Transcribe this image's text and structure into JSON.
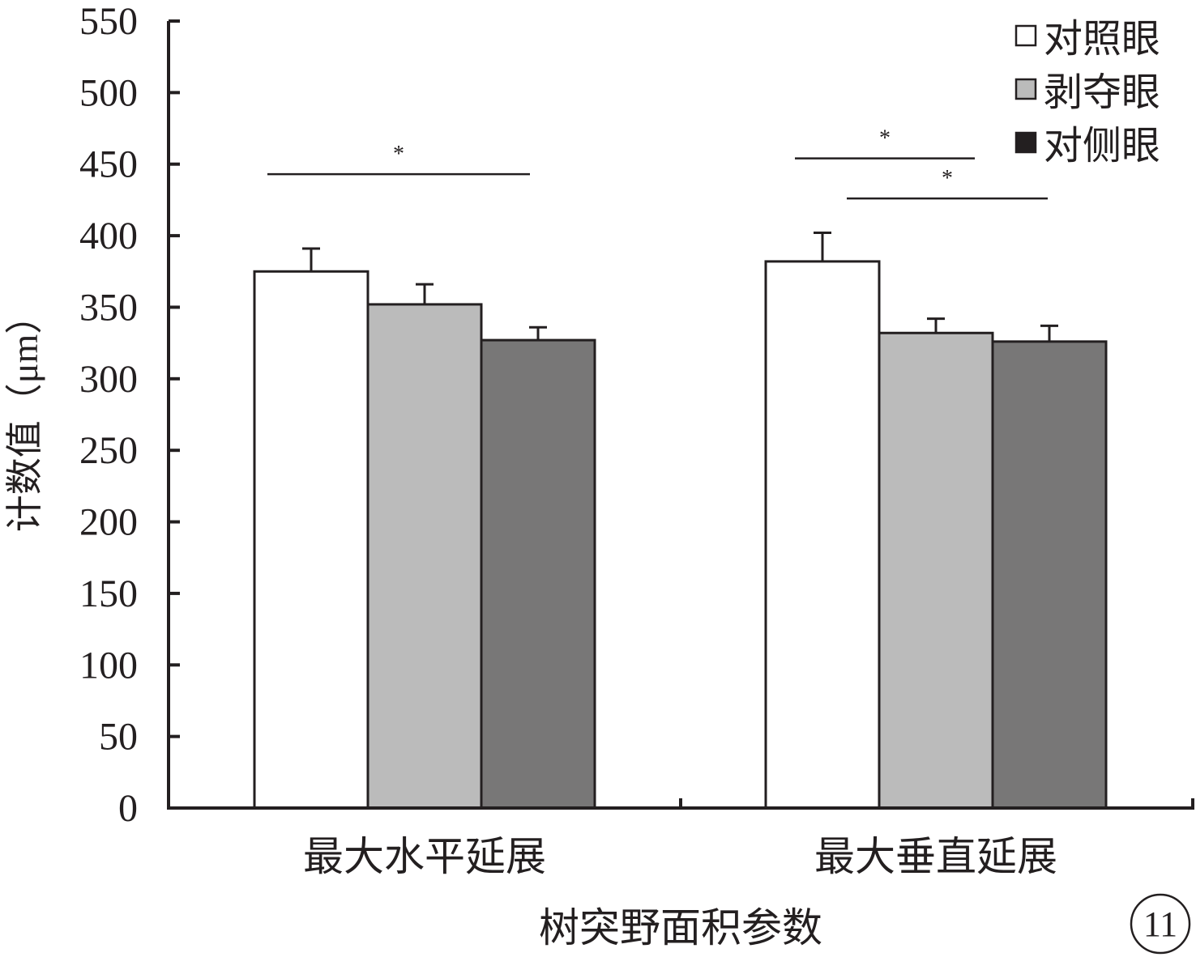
{
  "chart_data": {
    "type": "bar",
    "xlabel": "树突野面积参数",
    "ylabel": "计数值（μm）",
    "ylim": [
      0,
      550
    ],
    "yticks": [
      0,
      50,
      100,
      150,
      200,
      250,
      300,
      350,
      400,
      450,
      500,
      550
    ],
    "categories": [
      "最大水平延展",
      "最大垂直延展"
    ],
    "series": [
      {
        "name": "对照眼",
        "color": "#ffffff",
        "values": [
          375,
          382
        ],
        "errors": [
          16,
          20
        ]
      },
      {
        "name": "剥夺眼",
        "color": "#bbbbbb",
        "values": [
          352,
          332
        ],
        "errors": [
          14,
          10
        ]
      },
      {
        "name": "对侧眼",
        "color": "#787777",
        "values": [
          327,
          326
        ],
        "errors": [
          9,
          11
        ]
      }
    ],
    "legend_position": "top-right",
    "significance": [
      {
        "category": 0,
        "from_series": 0,
        "to_series": 2,
        "y": 443,
        "label": "*"
      },
      {
        "category": 1,
        "from_series": 0,
        "to_series": 1,
        "y": 454,
        "label": "*"
      },
      {
        "category": 1,
        "from_series": 1,
        "to_series": 2,
        "y": 426,
        "label": "*"
      }
    ],
    "panel_label": "11"
  }
}
